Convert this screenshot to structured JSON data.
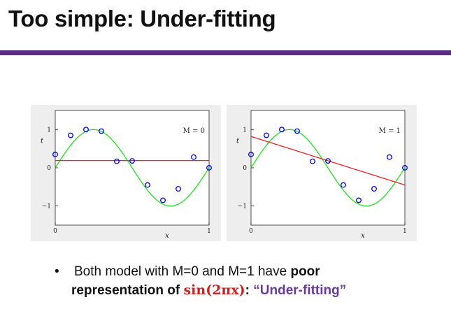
{
  "slide": {
    "title": "Too simple: Under-fitting",
    "accent_color": "#5b2d82"
  },
  "bullet": {
    "symbol": "•",
    "line1_prefix": "Both model with M=0 and M=1 have ",
    "line1_bold": "poor",
    "line2_bold": "representation of ",
    "math": "sin(2πx)",
    "colon": ": ",
    "quote": "“Under-fitting”",
    "math_color": "#cc2222",
    "quote_color": "#6b3a9c"
  },
  "chart_data": [
    {
      "type": "line",
      "label": "M = 0",
      "xlabel": "x",
      "ylabel": "t",
      "xlim": [
        0,
        1
      ],
      "ylim": [
        -1.5,
        1.5
      ],
      "x_ticks": [
        "0",
        "1"
      ],
      "y_ticks": [
        "1",
        "0",
        "−1"
      ],
      "points": {
        "x": [
          0.0,
          0.1,
          0.2,
          0.3,
          0.4,
          0.5,
          0.6,
          0.7,
          0.8,
          0.9,
          1.0
        ],
        "y": [
          0.35,
          0.85,
          1.0,
          0.96,
          0.17,
          0.18,
          -0.45,
          -0.85,
          -0.55,
          0.28,
          0.0
        ]
      },
      "curve": "sin(2πx)",
      "curve_color": "#22dd22",
      "point_color": "#0000ee",
      "fit": {
        "type": "constant",
        "value": 0.19,
        "color": "#ee2222"
      },
      "grid": false
    },
    {
      "type": "line",
      "label": "M = 1",
      "xlabel": "x",
      "ylabel": "t",
      "xlim": [
        0,
        1
      ],
      "ylim": [
        -1.5,
        1.5
      ],
      "x_ticks": [
        "0",
        "1"
      ],
      "y_ticks": [
        "1",
        "0",
        "−1"
      ],
      "points": {
        "x": [
          0.0,
          0.1,
          0.2,
          0.3,
          0.4,
          0.5,
          0.6,
          0.7,
          0.8,
          0.9,
          1.0
        ],
        "y": [
          0.35,
          0.85,
          1.0,
          0.96,
          0.17,
          0.18,
          -0.45,
          -0.85,
          -0.55,
          0.28,
          0.0
        ]
      },
      "curve": "sin(2πx)",
      "curve_color": "#22dd22",
      "point_color": "#0000ee",
      "fit": {
        "type": "linear",
        "intercept": 0.82,
        "slope": -1.27,
        "color": "#ee2222"
      },
      "grid": false
    }
  ]
}
